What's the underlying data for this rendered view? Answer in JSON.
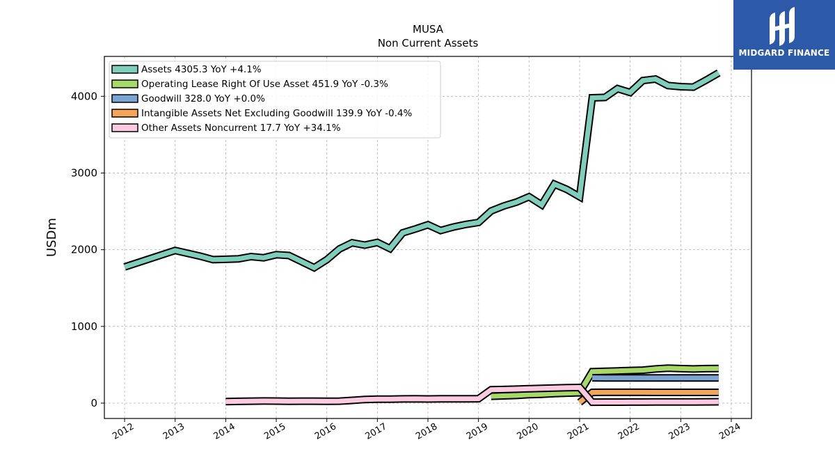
{
  "logo": {
    "text": "MIDGARD FINANCE",
    "icon": "midgard-logo-icon",
    "bg_color": "#2d5aa8"
  },
  "chart_data": {
    "type": "line",
    "title": "MUSA",
    "subtitle": "Non Current  Assets",
    "xlabel": "",
    "ylabel": "USDm",
    "ylim": [
      -200,
      4520
    ],
    "xlim": [
      2011.6,
      2024.4
    ],
    "yticks": [
      0,
      1000,
      2000,
      3000,
      4000
    ],
    "xticks": [
      "2012",
      "2013",
      "2014",
      "2015",
      "2016",
      "2017",
      "2018",
      "2019",
      "2020",
      "2021",
      "2022",
      "2023",
      "2024"
    ],
    "grid": true,
    "legend_position": "top-left",
    "series": [
      {
        "name": "Assets  4305.3 YoY +4.1%",
        "color": "#7fcdbb",
        "points": [
          [
            2012.0,
            1775
          ],
          [
            2013.0,
            1990
          ],
          [
            2013.5,
            1915
          ],
          [
            2013.75,
            1870
          ],
          [
            2014.0,
            1875
          ],
          [
            2014.25,
            1880
          ],
          [
            2014.5,
            1910
          ],
          [
            2014.75,
            1895
          ],
          [
            2015.0,
            1935
          ],
          [
            2015.25,
            1925
          ],
          [
            2015.5,
            1845
          ],
          [
            2015.75,
            1765
          ],
          [
            2016.0,
            1870
          ],
          [
            2016.25,
            2010
          ],
          [
            2016.5,
            2090
          ],
          [
            2016.75,
            2060
          ],
          [
            2017.0,
            2095
          ],
          [
            2017.25,
            2015
          ],
          [
            2017.5,
            2220
          ],
          [
            2017.75,
            2270
          ],
          [
            2018.0,
            2325
          ],
          [
            2018.25,
            2250
          ],
          [
            2018.5,
            2295
          ],
          [
            2018.75,
            2330
          ],
          [
            2019.0,
            2355
          ],
          [
            2019.25,
            2505
          ],
          [
            2019.5,
            2570
          ],
          [
            2019.75,
            2620
          ],
          [
            2020.0,
            2690
          ],
          [
            2020.25,
            2585
          ],
          [
            2020.5,
            2855
          ],
          [
            2020.75,
            2785
          ],
          [
            2021.0,
            2690
          ],
          [
            2021.25,
            3980
          ],
          [
            2021.5,
            3985
          ],
          [
            2021.75,
            4100
          ],
          [
            2022.0,
            4050
          ],
          [
            2022.25,
            4205
          ],
          [
            2022.5,
            4225
          ],
          [
            2022.75,
            4140
          ],
          [
            2023.0,
            4125
          ],
          [
            2023.25,
            4120
          ],
          [
            2023.5,
            4210
          ],
          [
            2023.75,
            4305
          ]
        ]
      },
      {
        "name": "Operating Lease Right Of Use Asset  451.9 YoY -0.3%",
        "color": "#a6d96a",
        "points": [
          [
            2019.25,
            90
          ],
          [
            2019.5,
            95
          ],
          [
            2019.75,
            100
          ],
          [
            2020.0,
            110
          ],
          [
            2020.25,
            115
          ],
          [
            2020.5,
            125
          ],
          [
            2020.75,
            130
          ],
          [
            2021.0,
            135
          ],
          [
            2021.25,
            410
          ],
          [
            2021.5,
            415
          ],
          [
            2021.75,
            420
          ],
          [
            2022.0,
            425
          ],
          [
            2022.25,
            430
          ],
          [
            2022.5,
            445
          ],
          [
            2022.75,
            455
          ],
          [
            2023.0,
            450
          ],
          [
            2023.25,
            445
          ],
          [
            2023.5,
            450
          ],
          [
            2023.75,
            452
          ]
        ]
      },
      {
        "name": "Goodwill  328.0 YoY +0.0%",
        "color": "#7ba6d3",
        "points": [
          [
            2021.25,
            330
          ],
          [
            2021.5,
            328
          ],
          [
            2021.75,
            328
          ],
          [
            2022.0,
            328
          ],
          [
            2022.25,
            328
          ],
          [
            2022.5,
            328
          ],
          [
            2022.75,
            328
          ],
          [
            2023.0,
            328
          ],
          [
            2023.25,
            328
          ],
          [
            2023.5,
            328
          ],
          [
            2023.75,
            328
          ]
        ]
      },
      {
        "name": "Intangible Assets Net Excluding Goodwill  139.9 YoY -0.4%",
        "color": "#f4a55a",
        "points": [
          [
            2021.0,
            10
          ],
          [
            2021.25,
            140
          ],
          [
            2021.5,
            141
          ],
          [
            2021.75,
            141
          ],
          [
            2022.0,
            141
          ],
          [
            2022.25,
            141
          ],
          [
            2022.5,
            140
          ],
          [
            2022.75,
            140
          ],
          [
            2023.0,
            140
          ],
          [
            2023.25,
            140
          ],
          [
            2023.5,
            140
          ],
          [
            2023.75,
            140
          ]
        ]
      },
      {
        "name": "Other Assets Noncurrent  17.7 YoY +34.1%",
        "color": "#fbc9e0",
        "points": [
          [
            2014.0,
            20
          ],
          [
            2014.25,
            23
          ],
          [
            2014.5,
            26
          ],
          [
            2014.75,
            28
          ],
          [
            2015.0,
            27
          ],
          [
            2015.25,
            24
          ],
          [
            2015.5,
            26
          ],
          [
            2015.75,
            26
          ],
          [
            2016.0,
            25
          ],
          [
            2016.25,
            26
          ],
          [
            2016.5,
            36
          ],
          [
            2016.75,
            48
          ],
          [
            2017.0,
            52
          ],
          [
            2017.25,
            52
          ],
          [
            2017.5,
            55
          ],
          [
            2017.75,
            57
          ],
          [
            2018.0,
            54
          ],
          [
            2018.25,
            56
          ],
          [
            2018.5,
            56
          ],
          [
            2018.75,
            57
          ],
          [
            2019.0,
            58
          ],
          [
            2019.25,
            175
          ],
          [
            2019.5,
            178
          ],
          [
            2019.75,
            182
          ],
          [
            2020.0,
            188
          ],
          [
            2020.25,
            192
          ],
          [
            2020.5,
            198
          ],
          [
            2020.75,
            202
          ],
          [
            2021.0,
            204
          ],
          [
            2021.25,
            12
          ],
          [
            2021.5,
            13
          ],
          [
            2021.75,
            13
          ],
          [
            2022.0,
            14
          ],
          [
            2022.25,
            14
          ],
          [
            2022.5,
            15
          ],
          [
            2022.75,
            15
          ],
          [
            2023.0,
            16
          ],
          [
            2023.25,
            16
          ],
          [
            2023.5,
            17
          ],
          [
            2023.75,
            18
          ]
        ]
      }
    ]
  }
}
